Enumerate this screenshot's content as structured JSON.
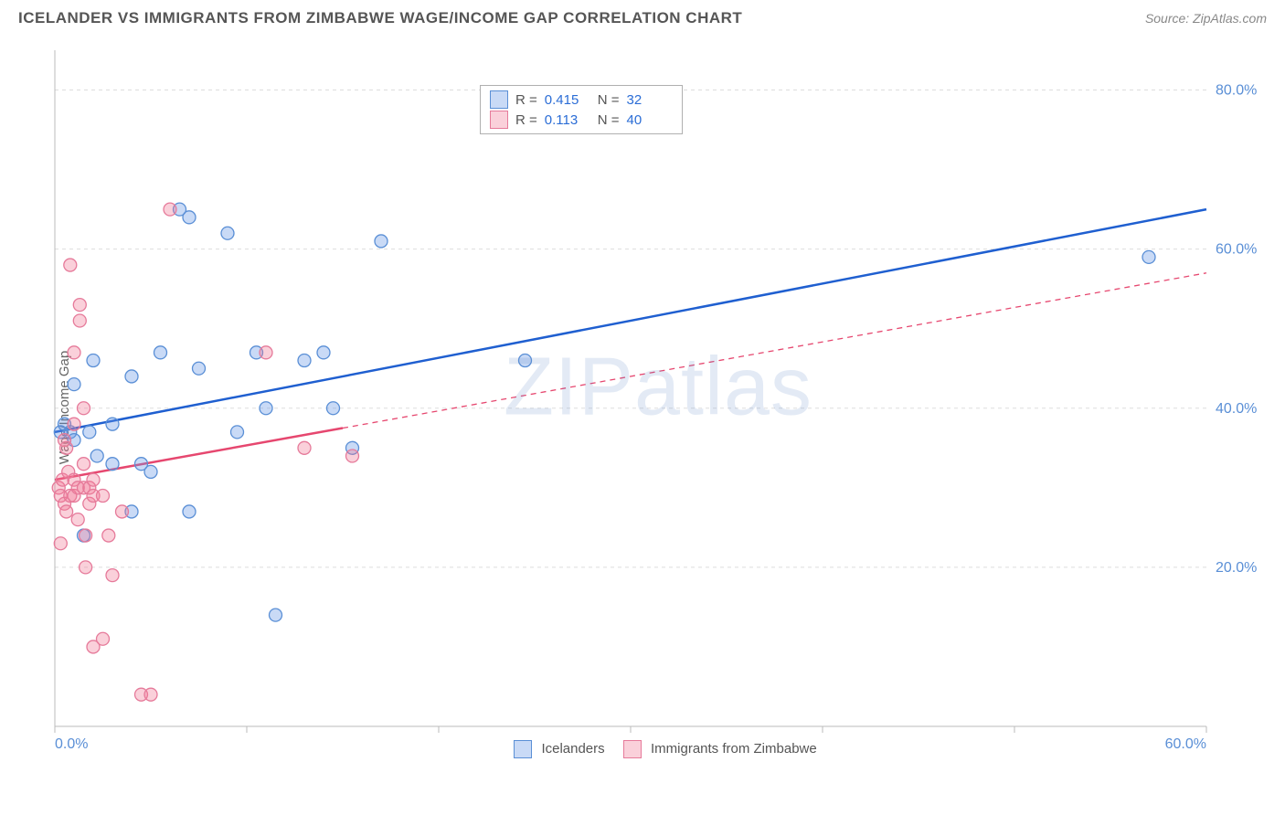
{
  "title": "ICELANDER VS IMMIGRANTS FROM ZIMBABWE WAGE/INCOME GAP CORRELATION CHART",
  "source": "Source: ZipAtlas.com",
  "ylabel": "Wage/Income Gap",
  "watermark": "ZIPatlas",
  "chart": {
    "type": "scatter",
    "xlim": [
      0,
      60
    ],
    "ylim": [
      0,
      85
    ],
    "xtick_values": [
      0,
      10,
      20,
      30,
      40,
      50,
      60
    ],
    "xtick_labels": [
      "0.0%",
      "",
      "",
      "",
      "",
      "",
      "60.0%"
    ],
    "ytick_values": [
      20,
      40,
      60,
      80
    ],
    "ytick_labels": [
      "20.0%",
      "40.0%",
      "60.0%",
      "80.0%"
    ],
    "grid_color": "#dddddd",
    "axis_color": "#bbbbbb",
    "tick_label_color": "#5a8fd6",
    "background_color": "#ffffff",
    "marker_radius": 7,
    "marker_stroke_width": 1.3,
    "line_width_solid": 2.5,
    "line_width_dashed": 1.3
  },
  "series": [
    {
      "name": "Icelanders",
      "color_fill": "rgba(100,150,230,0.35)",
      "color_stroke": "#5a8fd6",
      "trend_color": "#1f5fd0",
      "R": "0.415",
      "N": "32",
      "trend": {
        "x1": 0,
        "y1": 37,
        "x2": 60,
        "y2": 65,
        "solid_until_x": 60
      },
      "points": [
        [
          0.3,
          37
        ],
        [
          0.5,
          38
        ],
        [
          0.8,
          37
        ],
        [
          1,
          36
        ],
        [
          1,
          43
        ],
        [
          1.5,
          24
        ],
        [
          1.8,
          37
        ],
        [
          2,
          46
        ],
        [
          2.2,
          34
        ],
        [
          3,
          33
        ],
        [
          3,
          38
        ],
        [
          4,
          44
        ],
        [
          4,
          27
        ],
        [
          4.5,
          33
        ],
        [
          5,
          32
        ],
        [
          5.5,
          47
        ],
        [
          6.5,
          65
        ],
        [
          7,
          64
        ],
        [
          7.5,
          45
        ],
        [
          7,
          27
        ],
        [
          9,
          62
        ],
        [
          9.5,
          37
        ],
        [
          10.5,
          47
        ],
        [
          11,
          40
        ],
        [
          11.5,
          14
        ],
        [
          13,
          46
        ],
        [
          14,
          47
        ],
        [
          14.5,
          40
        ],
        [
          15.5,
          35
        ],
        [
          17,
          61
        ],
        [
          24.5,
          46
        ],
        [
          57,
          59
        ]
      ]
    },
    {
      "name": "Immigrants from Zimbabwe",
      "color_fill": "rgba(240,120,150,0.35)",
      "color_stroke": "#e67a9a",
      "trend_color": "#e6476f",
      "R": "0.113",
      "N": "40",
      "trend": {
        "x1": 0,
        "y1": 31,
        "x2": 60,
        "y2": 57,
        "solid_until_x": 15
      },
      "points": [
        [
          0.2,
          30
        ],
        [
          0.3,
          23
        ],
        [
          0.3,
          29
        ],
        [
          0.4,
          31
        ],
        [
          0.5,
          28
        ],
        [
          0.5,
          36
        ],
        [
          0.6,
          35
        ],
        [
          0.6,
          27
        ],
        [
          0.7,
          32
        ],
        [
          0.8,
          58
        ],
        [
          0.8,
          29
        ],
        [
          1,
          31
        ],
        [
          1,
          38
        ],
        [
          1,
          47
        ],
        [
          1,
          29
        ],
        [
          1.2,
          26
        ],
        [
          1.2,
          30
        ],
        [
          1.3,
          53
        ],
        [
          1.3,
          51
        ],
        [
          1.5,
          30
        ],
        [
          1.5,
          33
        ],
        [
          1.5,
          40
        ],
        [
          1.6,
          20
        ],
        [
          1.6,
          24
        ],
        [
          1.8,
          28
        ],
        [
          1.8,
          30
        ],
        [
          2,
          29
        ],
        [
          2,
          31
        ],
        [
          2,
          10
        ],
        [
          2.5,
          11
        ],
        [
          2.5,
          29
        ],
        [
          2.8,
          24
        ],
        [
          3,
          19
        ],
        [
          3.5,
          27
        ],
        [
          4.5,
          4
        ],
        [
          5,
          4
        ],
        [
          6,
          65
        ],
        [
          11,
          47
        ],
        [
          13,
          35
        ],
        [
          15.5,
          34
        ]
      ]
    }
  ],
  "legend_bottom": [
    {
      "label": "Icelanders",
      "fill": "rgba(100,150,230,0.35)",
      "stroke": "#5a8fd6"
    },
    {
      "label": "Immigrants from Zimbabwe",
      "fill": "rgba(240,120,150,0.35)",
      "stroke": "#e67a9a"
    }
  ]
}
